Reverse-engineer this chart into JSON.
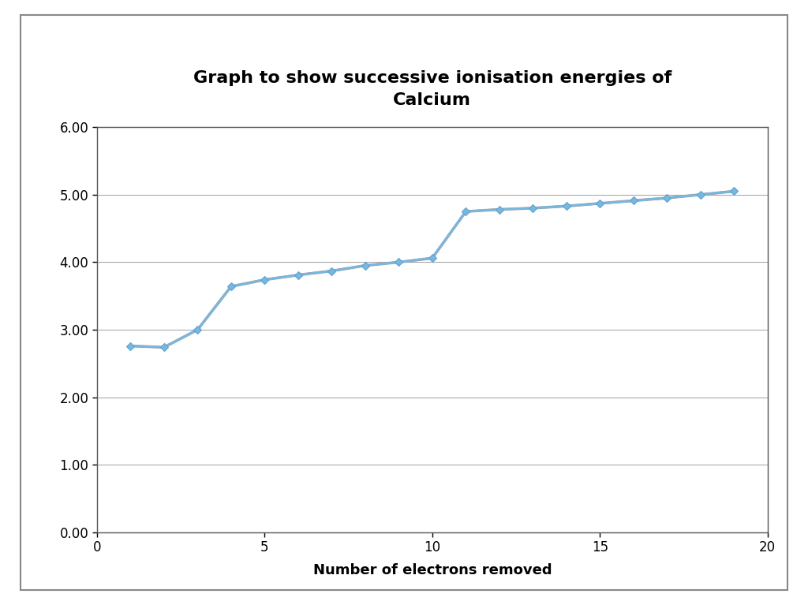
{
  "title_line1": "Graph to show successive ionisation energies of",
  "title_line2": "Calcium",
  "xlabel": "Number of electrons removed",
  "ylabel": "",
  "x_values": [
    1,
    2,
    3,
    4,
    5,
    6,
    7,
    8,
    9,
    10,
    11,
    12,
    13,
    14,
    15,
    16,
    17,
    18,
    19
  ],
  "y_values": [
    2.76,
    2.74,
    3.0,
    3.64,
    3.74,
    3.81,
    3.87,
    3.95,
    4.0,
    4.06,
    4.75,
    4.78,
    4.8,
    4.83,
    4.87,
    4.91,
    4.95,
    5.0,
    5.05
  ],
  "xlim": [
    0,
    20
  ],
  "ylim": [
    0.0,
    6.0
  ],
  "yticks": [
    0.0,
    1.0,
    2.0,
    3.0,
    4.0,
    5.0,
    6.0
  ],
  "xticks": [
    0,
    5,
    10,
    15,
    20
  ],
  "line_color": "#7ab7e0",
  "marker_color": "#5ba3d0",
  "shadow_color": "#999999",
  "bg_color": "#ffffff",
  "outer_bg": "#ffffff",
  "title_fontsize": 16,
  "axis_label_fontsize": 13,
  "tick_fontsize": 12,
  "grid_color": "#aaaaaa"
}
